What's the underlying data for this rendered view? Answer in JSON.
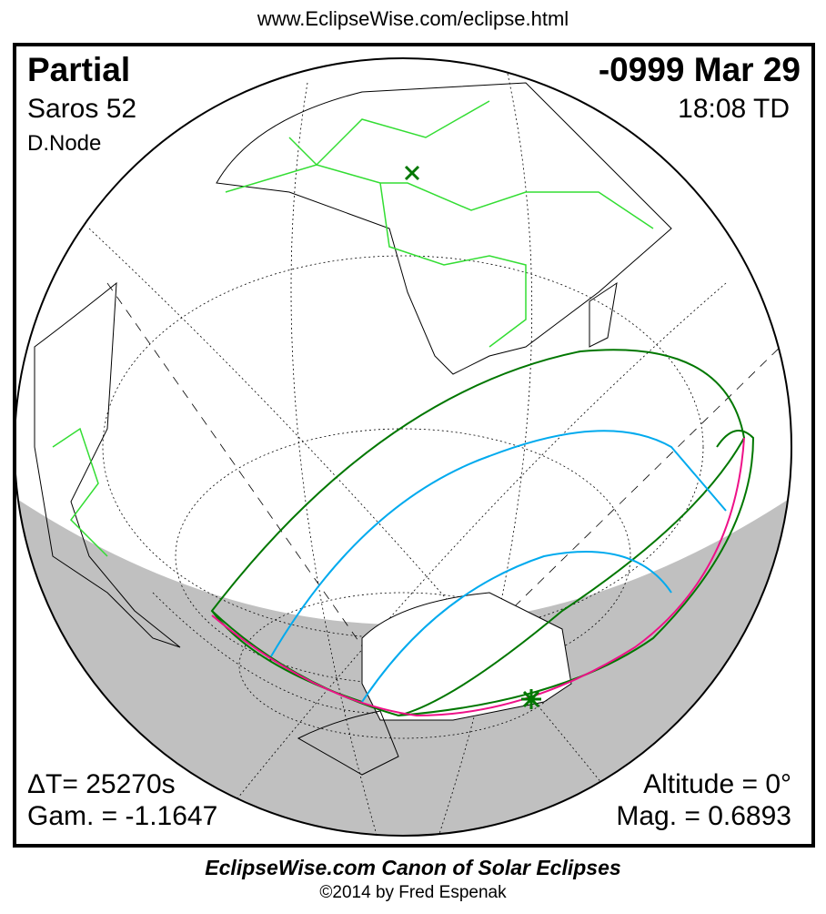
{
  "header_url": "www.EclipseWise.com/eclipse.html",
  "eclipse": {
    "type": "Partial",
    "date": "-0999 Mar 29",
    "saros": "Saros  52",
    "time": "18:08 TD",
    "node": "D.Node",
    "delta_t": "ΔT=  25270s",
    "gamma": "Gam. = -1.1647",
    "altitude": "Altitude =  0°",
    "magnitude": "Mag. = 0.6893"
  },
  "footer": {
    "title": "EclipseWise.com Canon of Solar Eclipses",
    "copyright": "©2014 by Fred Espenak"
  },
  "colors": {
    "land_borders": "#33dd33",
    "penumbra_limits": "#007700",
    "mid_lines": "#00aaee",
    "rise_set_curve": "#ee1188",
    "night": "#c0c0c0"
  },
  "markers": {
    "greatest_eclipse": "star-icon",
    "subsolar_point": "x-icon"
  }
}
